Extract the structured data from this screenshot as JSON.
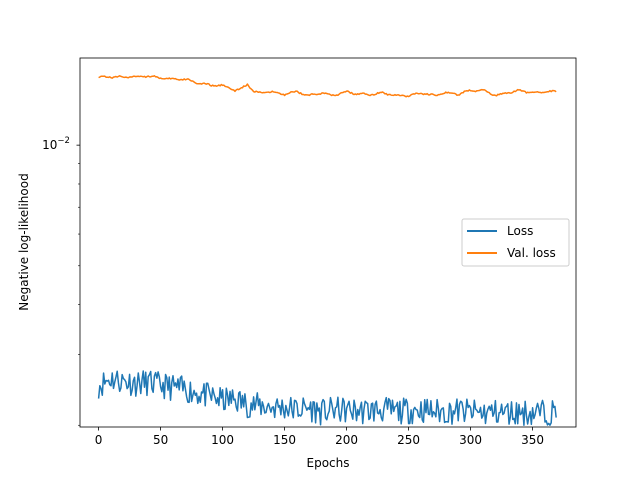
{
  "chart_data": {
    "type": "line",
    "title": "",
    "xlabel": "Epochs",
    "ylabel": "Negative log-likelihood",
    "yscale": "log",
    "xlim": [
      -15,
      385
    ],
    "ylim": [
      0.00198,
      0.0165
    ],
    "xticks": [
      0,
      50,
      100,
      150,
      200,
      250,
      300,
      350
    ],
    "xtick_labels": [
      "0",
      "50",
      "100",
      "150",
      "200",
      "250",
      "300",
      "350"
    ],
    "yticks": [
      0.01
    ],
    "ytick_label_base": "10",
    "ytick_label_exp": "−2",
    "grid": false,
    "legend": {
      "placement": "center right",
      "entries": [
        "Loss",
        "Val. loss"
      ]
    },
    "series": [
      {
        "name": "Loss",
        "color": "#1f77b4",
        "x": [
          0,
          10,
          20,
          30,
          40,
          50,
          60,
          70,
          80,
          90,
          100,
          110,
          120,
          130,
          140,
          150,
          160,
          170,
          180,
          190,
          200,
          210,
          220,
          230,
          240,
          250,
          260,
          270,
          280,
          290,
          300,
          310,
          320,
          330,
          340,
          350,
          360,
          369
        ],
        "y": [
          0.00252,
          0.00262,
          0.00258,
          0.00255,
          0.00256,
          0.00252,
          0.00249,
          0.00246,
          0.00241,
          0.00236,
          0.00231,
          0.00232,
          0.00226,
          0.00224,
          0.00222,
          0.00222,
          0.00219,
          0.00221,
          0.00216,
          0.00219,
          0.00218,
          0.00217,
          0.00218,
          0.00219,
          0.00217,
          0.00218,
          0.00219,
          0.00217,
          0.00216,
          0.00218,
          0.00216,
          0.00215,
          0.00216,
          0.00215,
          0.00216,
          0.00215,
          0.00216,
          0.00216
        ]
      },
      {
        "name": "Val. loss",
        "color": "#ff7f0e",
        "x": [
          0,
          10,
          20,
          30,
          40,
          50,
          60,
          70,
          80,
          90,
          100,
          110,
          115,
          120,
          125,
          130,
          140,
          150,
          160,
          170,
          180,
          190,
          200,
          210,
          220,
          230,
          240,
          250,
          260,
          270,
          280,
          290,
          300,
          310,
          320,
          330,
          340,
          350,
          360,
          369
        ],
        "y": [
          0.0148,
          0.0148,
          0.0148,
          0.0148,
          0.0149,
          0.0147,
          0.0146,
          0.0146,
          0.0143,
          0.0141,
          0.0141,
          0.0137,
          0.0138,
          0.0142,
          0.0136,
          0.0135,
          0.0136,
          0.0134,
          0.0136,
          0.0133,
          0.0135,
          0.0133,
          0.0136,
          0.0134,
          0.0134,
          0.0135,
          0.0133,
          0.0133,
          0.0135,
          0.0133,
          0.0135,
          0.0134,
          0.0137,
          0.0137,
          0.0133,
          0.0135,
          0.0137,
          0.0135,
          0.0136,
          0.0136
        ]
      }
    ]
  }
}
